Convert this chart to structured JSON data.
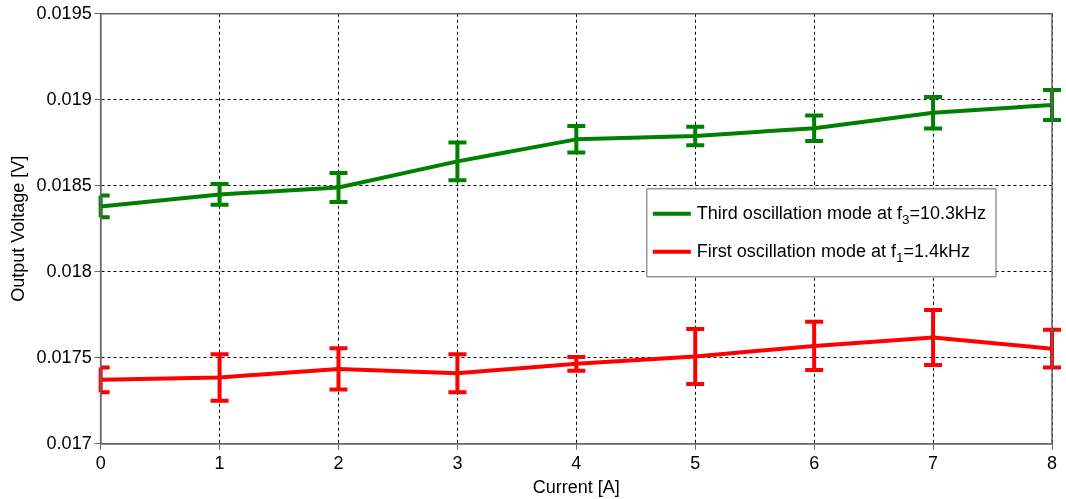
{
  "chart_data": {
    "type": "line",
    "xlabel": "Current [A]",
    "ylabel": "Output Voltage [V]",
    "x": [
      0,
      1,
      2,
      3,
      4,
      5,
      6,
      7,
      8
    ],
    "series": [
      {
        "name": "Third oscillation mode at f$_{3}$=10.3kHz",
        "color": "#008000",
        "values": [
          0.01838,
          0.01845,
          0.01849,
          0.018642,
          0.01877,
          0.01879,
          0.018835,
          0.018925,
          0.01897
        ],
        "errors": [
          6.3e-05,
          6e-05,
          8.4e-05,
          0.00011,
          7.7e-05,
          5.4e-05,
          7.4e-05,
          9.2e-05,
          8.7e-05
        ]
      },
      {
        "name": "First oscillation mode at f$_{1}$=1.4kHz",
        "color": "#ff0000",
        "values": [
          0.017372,
          0.017386,
          0.017435,
          0.01741,
          0.017465,
          0.017508,
          0.017569,
          0.017618,
          0.017553
        ],
        "errors": [
          7.2e-05,
          0.000135,
          0.00012,
          0.00011,
          4e-05,
          0.00016,
          0.00014,
          0.00016,
          0.00011
        ]
      }
    ],
    "xlim": [
      0,
      8
    ],
    "xticks": [
      0,
      1,
      2,
      3,
      4,
      5,
      6,
      7,
      8
    ],
    "ylim": [
      0.017,
      0.0195
    ],
    "yticks": [
      0.017,
      0.0175,
      0.018,
      0.0185,
      0.019,
      0.0195
    ],
    "grid": true,
    "legend": "right",
    "marker": "none",
    "line_style": "solid"
  }
}
